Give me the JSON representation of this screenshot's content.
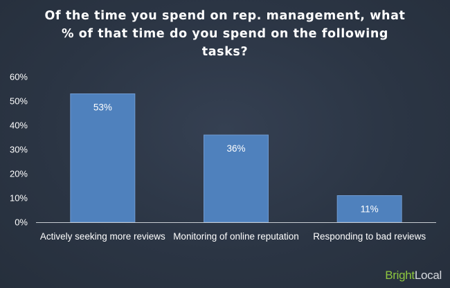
{
  "chart_data": {
    "type": "bar",
    "title": "Of the time you spend on rep. management, what % of that time do you spend on the following tasks?",
    "categories": [
      "Actively seeking more reviews",
      "Monitoring of online reputation",
      "Responding to bad reviews"
    ],
    "values": [
      53,
      36,
      11
    ],
    "data_labels": [
      "53%",
      "36%",
      "11%"
    ],
    "y_ticks": [
      "0%",
      "10%",
      "20%",
      "30%",
      "40%",
      "50%",
      "60%"
    ],
    "ylim": [
      0,
      60
    ],
    "xlabel": "",
    "ylabel": "",
    "grid": false,
    "legend": "none",
    "bar_color": "#4f81bd",
    "bar_border_color": "#6f9ad0"
  },
  "branding": {
    "part1": "Bright",
    "part2": "Local",
    "part1_color": "#8dc63f",
    "part2_color": "#d7dbe0"
  },
  "colors": {
    "background": "#2b3544",
    "axis": "#c8ccd2",
    "text": "#ffffff"
  }
}
